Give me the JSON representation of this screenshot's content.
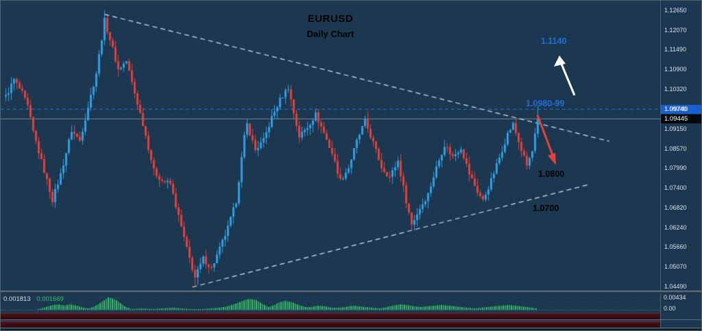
{
  "colors": {
    "background": "#1c3750",
    "bull": "#2f9fe3",
    "bear": "#e5403a",
    "trendline": "#dde6ee",
    "zone_line": "#2a7ade",
    "zone_badge": "#1a5fd0",
    "annotation_blue": "#1f6fd6",
    "annotation_dark": "#000000",
    "axis_text": "#dce4ea",
    "histogram": "#38c06c",
    "strip": "#2a080d",
    "strip_hi": "#4a1219"
  },
  "chart_data": {
    "type": "candlestick",
    "symbol": "EURUSD",
    "timeframe": "Daily",
    "title": "EURUSD",
    "subtitle": "Daily Chart",
    "ylim": [
      1.0449,
      1.1265
    ],
    "price_axis": {
      "ticks": [
        "1.12650",
        "1.12070",
        "1.11490",
        "1.10900",
        "1.10320",
        "1.09740",
        "1.09150",
        "1.08570",
        "1.07990",
        "1.07400",
        "1.06820",
        "1.06240",
        "1.05660",
        "1.05070",
        "1.04490"
      ],
      "current_price": "1.09445",
      "resistance_price": "1.09740"
    },
    "horizontal_levels": [
      {
        "price": 1.0974,
        "style": "dashed",
        "color": "#2a7ade",
        "width": 1
      },
      {
        "price": 1.09445,
        "style": "solid",
        "color": "rgba(220,228,234,0.45)",
        "width": 1
      }
    ],
    "trendlines": [
      {
        "name": "upper-descending",
        "i1": 36,
        "p1": 1.1253,
        "i2": 220,
        "p2": 1.0878,
        "style": "dashed"
      },
      {
        "name": "lower-ascending",
        "i1": 68,
        "p1": 1.0447,
        "i2": 213,
        "p2": 1.0751,
        "style": "dashed"
      }
    ],
    "candles": {
      "count": 195,
      "noise": 0.0016,
      "close_keypoints": [
        [
          0,
          1.101
        ],
        [
          3,
          1.106
        ],
        [
          6,
          1.102
        ],
        [
          8,
          1.098
        ],
        [
          10,
          1.0905
        ],
        [
          14,
          1.079
        ],
        [
          17,
          1.0705
        ],
        [
          20,
          1.078
        ],
        [
          24,
          1.091
        ],
        [
          27,
          1.088
        ],
        [
          30,
          1.098
        ],
        [
          33,
          1.108
        ],
        [
          36,
          1.1235
        ],
        [
          38,
          1.118
        ],
        [
          41,
          1.109
        ],
        [
          44,
          1.1115
        ],
        [
          47,
          1.102
        ],
        [
          50,
          1.093
        ],
        [
          54,
          1.079
        ],
        [
          57,
          1.0762
        ],
        [
          60,
          1.0752
        ],
        [
          63,
          1.0655
        ],
        [
          66,
          1.056
        ],
        [
          69,
          1.0475
        ],
        [
          72,
          1.0532
        ],
        [
          75,
          1.0502
        ],
        [
          78,
          1.056
        ],
        [
          81,
          1.0622
        ],
        [
          84,
          1.0702
        ],
        [
          87,
          1.089
        ],
        [
          88,
          1.0928
        ],
        [
          91,
          1.0852
        ],
        [
          94,
          1.088
        ],
        [
          97,
          1.0948
        ],
        [
          100,
          1.1
        ],
        [
          103,
          1.1038
        ],
        [
          105,
          1.0962
        ],
        [
          107,
          1.0892
        ],
        [
          110,
          1.092
        ],
        [
          113,
          1.0958
        ],
        [
          116,
          1.0902
        ],
        [
          119,
          1.0842
        ],
        [
          122,
          1.0762
        ],
        [
          125,
          1.08
        ],
        [
          128,
          1.0878
        ],
        [
          131,
          1.0938
        ],
        [
          134,
          1.0872
        ],
        [
          137,
          1.0802
        ],
        [
          140,
          1.0772
        ],
        [
          143,
          1.082
        ],
        [
          146,
          1.0702
        ],
        [
          148,
          1.0632
        ],
        [
          151,
          1.068
        ],
        [
          154,
          1.0722
        ],
        [
          157,
          1.08
        ],
        [
          160,
          1.0868
        ],
        [
          163,
          1.0832
        ],
        [
          166,
          1.086
        ],
        [
          169,
          1.0782
        ],
        [
          172,
          1.073
        ],
        [
          174,
          1.0702
        ],
        [
          177,
          1.0762
        ],
        [
          180,
          1.083
        ],
        [
          183,
          1.09
        ],
        [
          185,
          1.0928
        ],
        [
          188,
          1.0852
        ],
        [
          190,
          1.0806
        ],
        [
          192,
          1.0848
        ],
        [
          194,
          1.0944
        ]
      ],
      "forced_extremes": [
        [
          36,
          "high",
          1.1265
        ],
        [
          17,
          "low",
          1.0685
        ],
        [
          69,
          "low",
          1.0449
        ],
        [
          103,
          "high",
          1.1045
        ],
        [
          148,
          "low",
          1.0615
        ],
        [
          194,
          "high",
          1.0982
        ]
      ],
      "last_close": 1.0944
    },
    "annotations": {
      "upside_target": "1.1140",
      "zone": "1.0980-99",
      "downside_target": "1.0800",
      "support": "1.0700"
    },
    "indicator": {
      "value_main": "0.001813",
      "value_signal": "0.001669",
      "scale_top": "0.00434",
      "scale_zero": "0.00",
      "baseline_y": 451,
      "envelope": [
        [
          50,
          0
        ],
        [
          62,
          3
        ],
        [
          72,
          6
        ],
        [
          82,
          8
        ],
        [
          92,
          6
        ],
        [
          100,
          8
        ],
        [
          110,
          6
        ],
        [
          120,
          3
        ],
        [
          128,
          2
        ],
        [
          136,
          5
        ],
        [
          146,
          11
        ],
        [
          156,
          18
        ],
        [
          164,
          16
        ],
        [
          172,
          11
        ],
        [
          180,
          5
        ],
        [
          190,
          1
        ],
        [
          205,
          2
        ],
        [
          220,
          1
        ],
        [
          235,
          2
        ],
        [
          250,
          3
        ],
        [
          263,
          2
        ],
        [
          278,
          1
        ],
        [
          292,
          1
        ],
        [
          305,
          2
        ],
        [
          318,
          3
        ],
        [
          330,
          5
        ],
        [
          342,
          9
        ],
        [
          352,
          13
        ],
        [
          362,
          16
        ],
        [
          372,
          14
        ],
        [
          382,
          8
        ],
        [
          390,
          4
        ],
        [
          398,
          7
        ],
        [
          406,
          11
        ],
        [
          414,
          13
        ],
        [
          424,
          11
        ],
        [
          434,
          7
        ],
        [
          443,
          4
        ],
        [
          452,
          4
        ],
        [
          462,
          6
        ],
        [
          472,
          5
        ],
        [
          482,
          3
        ],
        [
          492,
          3
        ],
        [
          502,
          4
        ],
        [
          512,
          6
        ],
        [
          522,
          5
        ],
        [
          532,
          4
        ],
        [
          542,
          3
        ],
        [
          552,
          2
        ],
        [
          562,
          4
        ],
        [
          572,
          6
        ],
        [
          582,
          8
        ],
        [
          592,
          7
        ],
        [
          602,
          5
        ],
        [
          612,
          4
        ],
        [
          622,
          5
        ],
        [
          632,
          6
        ],
        [
          642,
          7
        ],
        [
          652,
          6
        ],
        [
          662,
          5
        ],
        [
          670,
          4
        ],
        [
          680,
          3
        ],
        [
          690,
          2
        ],
        [
          700,
          3
        ],
        [
          710,
          4
        ],
        [
          720,
          5
        ],
        [
          730,
          6
        ],
        [
          740,
          7
        ],
        [
          750,
          6
        ],
        [
          758,
          5
        ],
        [
          766,
          4
        ],
        [
          774,
          3
        ],
        [
          780,
          2
        ]
      ]
    }
  }
}
